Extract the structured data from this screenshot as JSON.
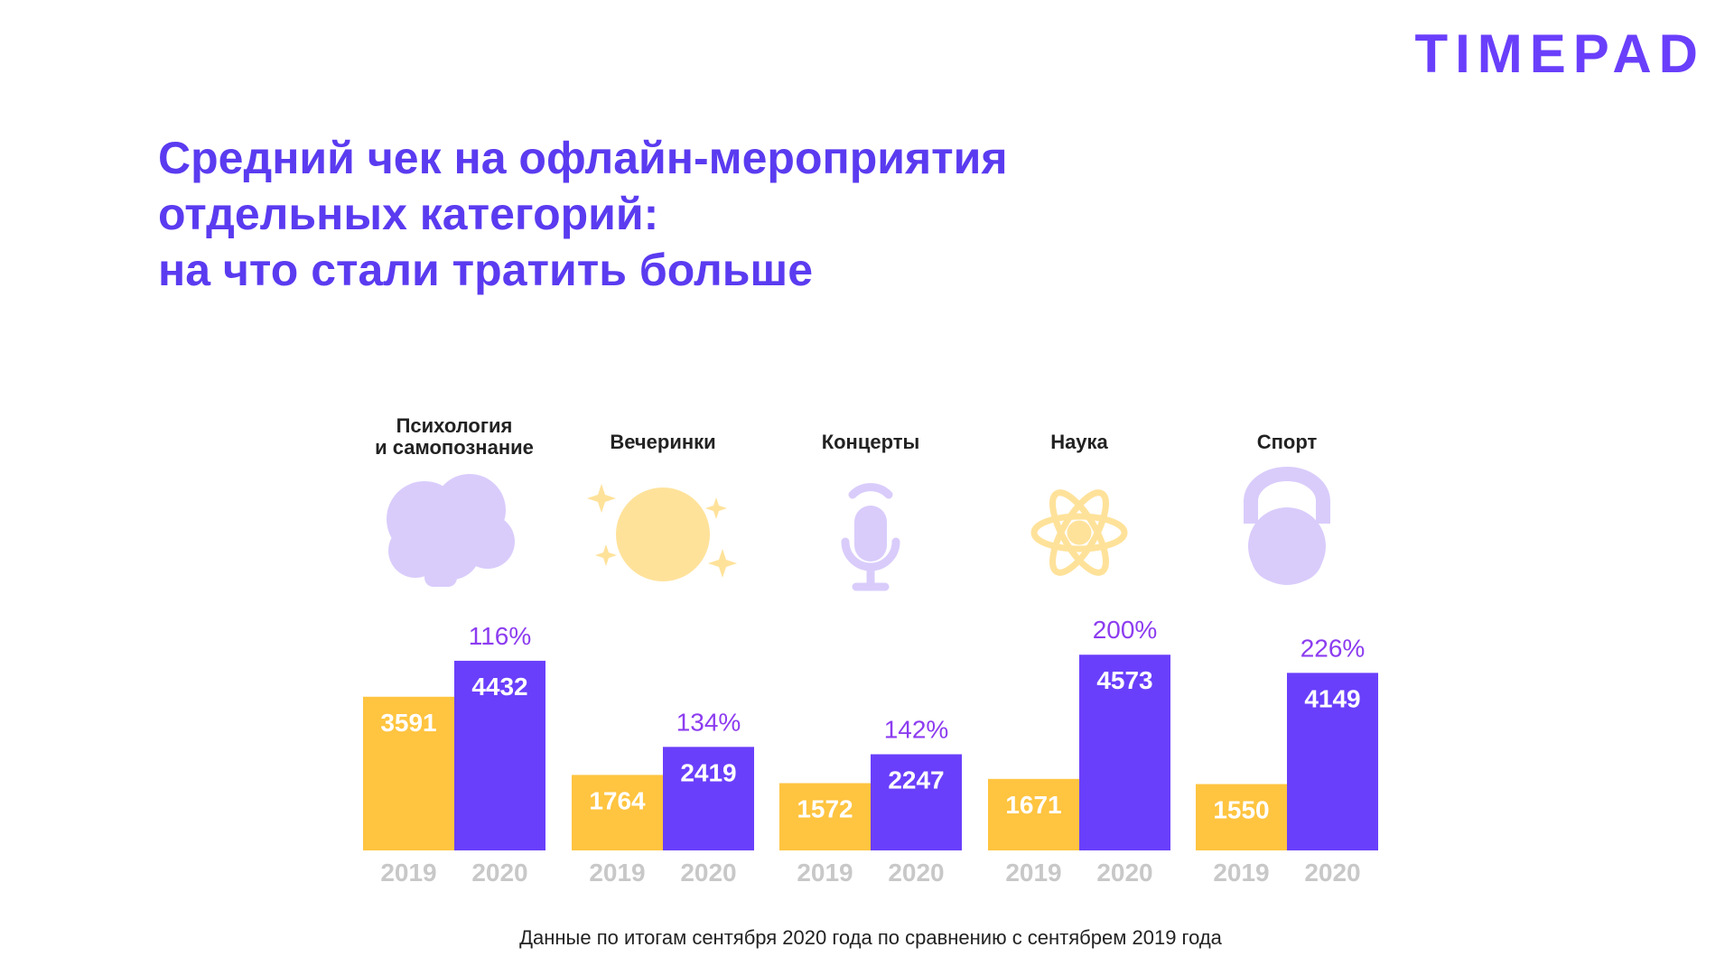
{
  "logo": "TIMEPAD",
  "chart_data": {
    "type": "bar",
    "title": [
      "Средний чек на офлайн-мероприятия",
      "отдельных категорий:",
      "на что стали тратить больше"
    ],
    "categories": [
      "Психология\nи самопознание",
      "Вечеринки",
      "Концерты",
      "Наука",
      "Спорт"
    ],
    "series": [
      {
        "name": "2019",
        "color": "#FFC440",
        "values": [
          3591,
          1764,
          1572,
          1671,
          1550
        ]
      },
      {
        "name": "2020",
        "color": "#6A3FFB",
        "values": [
          4432,
          2419,
          2247,
          4573,
          4149
        ]
      }
    ],
    "annotations": [
      "116%",
      "134%",
      "142%",
      "200%",
      "226%"
    ],
    "ylim": [
      0,
      5000
    ],
    "footnote": "Данные по итогам сентября 2020 года по сравнению с сентябрем 2019 года"
  }
}
